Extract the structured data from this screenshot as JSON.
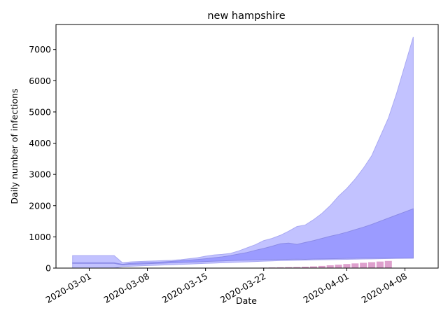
{
  "chart_data": {
    "type": "area",
    "title": "new hampshire",
    "xlabel": "Date",
    "ylabel": "Daily number of infections",
    "x_start": "2020-02-28",
    "x_end": "2020-04-09",
    "xlim": [
      "2020-02-26",
      "2020-04-12"
    ],
    "ylim": [
      0,
      7800
    ],
    "x_ticks": [
      "2020-03-01",
      "2020-03-08",
      "2020-03-15",
      "2020-03-22",
      "2020-04-01",
      "2020-04-08"
    ],
    "y_ticks": [
      0,
      1000,
      2000,
      3000,
      4000,
      5000,
      6000,
      7000
    ],
    "grid": false,
    "legend": "none",
    "colors": {
      "outer_band": "#bfbfff",
      "inner_band": "#9999ff",
      "bars": "#d88fc4"
    },
    "outer_band": {
      "lower": [
        0,
        0,
        0,
        0,
        0,
        0,
        50,
        60,
        70,
        80,
        90,
        100,
        110,
        120,
        130,
        140,
        150,
        160,
        170,
        180,
        190,
        200,
        210,
        220,
        230,
        240,
        245,
        250,
        255,
        260,
        265,
        270,
        275,
        280,
        285,
        290,
        295,
        300,
        305,
        310,
        315,
        320
      ],
      "upper": [
        400,
        400,
        400,
        400,
        400,
        400,
        170,
        200,
        210,
        220,
        230,
        240,
        250,
        270,
        300,
        330,
        380,
        420,
        440,
        470,
        550,
        650,
        750,
        880,
        950,
        1050,
        1180,
        1330,
        1380,
        1550,
        1750,
        2000,
        2300,
        2550,
        2850,
        3200,
        3600,
        4200,
        4800,
        5600,
        6500,
        7400
      ]
    },
    "inner_band": {
      "lower": [
        150,
        150,
        150,
        150,
        150,
        150,
        100,
        120,
        130,
        140,
        150,
        160,
        170,
        180,
        190,
        200,
        210,
        220,
        230,
        240,
        250,
        255,
        260,
        265,
        270,
        275,
        280,
        285,
        280,
        290,
        295,
        300,
        305,
        310,
        315,
        320,
        320,
        320,
        320,
        320,
        320,
        320
      ],
      "upper": [
        170,
        170,
        170,
        170,
        170,
        170,
        120,
        150,
        165,
        175,
        185,
        200,
        215,
        235,
        255,
        275,
        300,
        330,
        360,
        400,
        450,
        500,
        570,
        630,
        700,
        780,
        800,
        760,
        820,
        880,
        950,
        1020,
        1080,
        1150,
        1230,
        1310,
        1400,
        1500,
        1600,
        1700,
        1800,
        1900
      ]
    },
    "bars": {
      "values": [
        0,
        0,
        0,
        0,
        0,
        0,
        0,
        0,
        0,
        0,
        0,
        0,
        0,
        0,
        0,
        0,
        0,
        0,
        0,
        0,
        0,
        0,
        10,
        15,
        20,
        25,
        30,
        35,
        45,
        55,
        70,
        90,
        110,
        130,
        150,
        170,
        190,
        210,
        230,
        0,
        0,
        0
      ]
    }
  }
}
